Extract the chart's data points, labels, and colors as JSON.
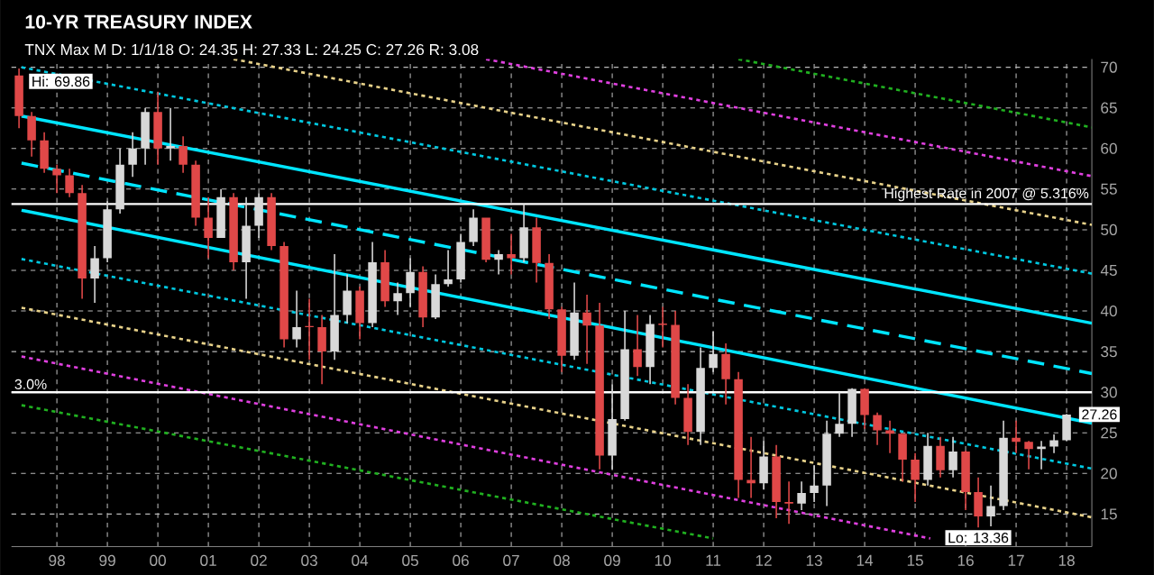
{
  "chart_data": {
    "type": "candlestick",
    "title": "10-YR TREASURY INDEX",
    "subtitle": "TNX Max M   D: 1/1/18   O: 24.35   H: 27.33   L: 24.25   C: 27.26   R: 3.08",
    "x": [
      1997.25,
      1997.5,
      1997.75,
      1998.0,
      1998.25,
      1998.5,
      1998.75,
      1999.0,
      1999.25,
      1999.5,
      1999.75,
      2000.0,
      2000.25,
      2000.5,
      2000.75,
      2001.0,
      2001.25,
      2001.5,
      2001.75,
      2002.0,
      2002.25,
      2002.5,
      2002.75,
      2003.0,
      2003.25,
      2003.5,
      2003.75,
      2004.0,
      2004.25,
      2004.5,
      2004.75,
      2005.0,
      2005.25,
      2005.5,
      2005.75,
      2006.0,
      2006.25,
      2006.5,
      2006.75,
      2007.0,
      2007.25,
      2007.5,
      2007.75,
      2008.0,
      2008.25,
      2008.5,
      2008.75,
      2009.0,
      2009.25,
      2009.5,
      2009.75,
      2010.0,
      2010.25,
      2010.5,
      2010.75,
      2011.0,
      2011.25,
      2011.5,
      2011.75,
      2012.0,
      2012.25,
      2012.5,
      2012.75,
      2013.0,
      2013.25,
      2013.5,
      2013.75,
      2014.0,
      2014.25,
      2014.5,
      2014.75,
      2015.0,
      2015.25,
      2015.5,
      2015.75,
      2016.0,
      2016.25,
      2016.5,
      2016.75,
      2017.0,
      2017.25,
      2017.5,
      2017.75,
      2018.0
    ],
    "ohlc": [
      [
        69.0,
        69.86,
        62.5,
        64.0
      ],
      [
        64.0,
        64.5,
        59.0,
        61.0
      ],
      [
        61.0,
        62.0,
        57.0,
        57.5
      ],
      [
        57.5,
        58.0,
        54.5,
        56.7
      ],
      [
        56.7,
        57.5,
        54.0,
        54.5
      ],
      [
        54.5,
        55.5,
        41.5,
        44.0
      ],
      [
        44.0,
        48.0,
        41.0,
        46.5
      ],
      [
        46.5,
        53.5,
        46.0,
        52.5
      ],
      [
        52.5,
        60.0,
        52.0,
        58.0
      ],
      [
        58.0,
        62.0,
        56.5,
        60.0
      ],
      [
        60.0,
        65.0,
        58.0,
        64.5
      ],
      [
        64.5,
        67.0,
        58.0,
        60.0
      ],
      [
        60.0,
        65.0,
        58.5,
        60.3
      ],
      [
        60.3,
        61.5,
        57.0,
        58.0
      ],
      [
        58.0,
        58.5,
        50.5,
        51.5
      ],
      [
        51.5,
        54.0,
        46.5,
        49.0
      ],
      [
        49.0,
        55.0,
        49.0,
        54.0
      ],
      [
        54.0,
        54.5,
        45.0,
        46.0
      ],
      [
        46.0,
        54.0,
        41.5,
        50.5
      ],
      [
        50.5,
        54.5,
        49.0,
        54.0
      ],
      [
        54.0,
        54.5,
        47.5,
        48.0
      ],
      [
        48.0,
        48.5,
        35.5,
        36.5
      ],
      [
        36.5,
        42.5,
        35.5,
        38.0
      ],
      [
        38.0,
        41.5,
        34.0,
        38.0
      ],
      [
        38.0,
        39.5,
        31.0,
        35.0
      ],
      [
        35.0,
        47.0,
        34.0,
        39.5
      ],
      [
        39.5,
        44.5,
        38.5,
        42.5
      ],
      [
        42.5,
        43.0,
        36.5,
        38.5
      ],
      [
        38.5,
        48.5,
        38.0,
        46.0
      ],
      [
        46.0,
        47.5,
        40.5,
        41.2
      ],
      [
        41.2,
        43.5,
        39.5,
        42.2
      ],
      [
        42.2,
        46.5,
        40.5,
        44.8
      ],
      [
        44.8,
        45.5,
        38.0,
        39.2
      ],
      [
        39.2,
        44.5,
        39.0,
        43.3
      ],
      [
        43.3,
        47.5,
        43.0,
        43.9
      ],
      [
        43.9,
        49.5,
        43.5,
        48.5
      ],
      [
        48.5,
        52.5,
        48.0,
        51.5
      ],
      [
        51.5,
        51.5,
        46.0,
        46.3
      ],
      [
        46.3,
        47.5,
        44.5,
        47.0
      ],
      [
        47.0,
        49.5,
        44.5,
        46.5
      ],
      [
        46.5,
        53.16,
        46.0,
        50.3
      ],
      [
        50.3,
        51.5,
        43.5,
        45.9
      ],
      [
        45.9,
        47.0,
        39.0,
        40.2
      ],
      [
        40.2,
        40.5,
        32.5,
        34.5
      ],
      [
        34.5,
        43.5,
        34.0,
        39.8
      ],
      [
        39.8,
        42.0,
        33.5,
        38.2
      ],
      [
        38.2,
        41.0,
        20.5,
        22.2
      ],
      [
        22.2,
        31.0,
        20.5,
        26.7
      ],
      [
        26.7,
        40.0,
        26.5,
        35.3
      ],
      [
        35.3,
        39.5,
        32.0,
        33.1
      ],
      [
        33.1,
        39.5,
        31.0,
        38.4
      ],
      [
        38.4,
        40.5,
        35.5,
        38.3
      ],
      [
        38.3,
        40.0,
        28.5,
        29.3
      ],
      [
        29.3,
        31.0,
        23.5,
        25.1
      ],
      [
        25.1,
        35.5,
        23.5,
        33.0
      ],
      [
        33.0,
        37.5,
        32.5,
        34.7
      ],
      [
        34.7,
        36.0,
        28.5,
        31.6
      ],
      [
        31.6,
        32.5,
        17.0,
        19.2
      ],
      [
        19.2,
        24.5,
        17.0,
        18.8
      ],
      [
        18.8,
        24.0,
        18.0,
        22.1
      ],
      [
        22.1,
        23.5,
        14.5,
        16.5
      ],
      [
        16.5,
        19.0,
        13.8,
        16.3
      ],
      [
        16.3,
        19.0,
        15.5,
        17.6
      ],
      [
        17.6,
        21.0,
        16.5,
        18.5
      ],
      [
        18.5,
        26.5,
        16.0,
        24.9
      ],
      [
        24.9,
        30.0,
        24.5,
        26.1
      ],
      [
        26.1,
        30.5,
        24.5,
        30.4
      ],
      [
        30.4,
        30.5,
        25.5,
        27.2
      ],
      [
        27.2,
        27.5,
        23.5,
        25.3
      ],
      [
        25.3,
        26.5,
        22.5,
        24.9
      ],
      [
        24.9,
        24.9,
        19.0,
        21.7
      ],
      [
        21.7,
        22.5,
        16.5,
        19.2
      ],
      [
        19.2,
        25.0,
        18.5,
        23.4
      ],
      [
        23.4,
        24.5,
        19.5,
        20.4
      ],
      [
        20.4,
        24.5,
        19.5,
        22.7
      ],
      [
        22.7,
        22.8,
        15.5,
        17.7
      ],
      [
        17.7,
        19.5,
        13.36,
        14.7
      ],
      [
        14.7,
        18.5,
        13.5,
        16.0
      ],
      [
        16.0,
        26.5,
        15.5,
        24.4
      ],
      [
        24.4,
        26.5,
        22.5,
        23.9
      ],
      [
        23.9,
        24.0,
        20.5,
        23.0
      ],
      [
        23.0,
        24.0,
        20.5,
        23.3
      ],
      [
        23.3,
        24.8,
        22.5,
        24.1
      ],
      [
        24.1,
        27.33,
        24.0,
        27.26
      ]
    ],
    "colors": [
      "#e04848",
      "#e04848",
      "#e04848",
      "#e04848",
      "#e04848",
      "#e04848",
      "#d8d8d8",
      "#d8d8d8",
      "#d8d8d8",
      "#d8d8d8",
      "#d8d8d8",
      "#e04848",
      "#d8d8d8",
      "#e04848",
      "#e04848",
      "#e04848",
      "#d8d8d8",
      "#e04848",
      "#d8d8d8",
      "#d8d8d8",
      "#e04848",
      "#e04848",
      "#d8d8d8",
      "#e04848",
      "#e04848",
      "#d8d8d8",
      "#d8d8d8",
      "#e04848",
      "#d8d8d8",
      "#e04848",
      "#d8d8d8",
      "#d8d8d8",
      "#e04848",
      "#d8d8d8",
      "#d8d8d8",
      "#d8d8d8",
      "#d8d8d8",
      "#e04848",
      "#d8d8d8",
      "#e04848",
      "#d8d8d8",
      "#e04848",
      "#e04848",
      "#e04848",
      "#d8d8d8",
      "#e04848",
      "#e04848",
      "#d8d8d8",
      "#d8d8d8",
      "#e04848",
      "#d8d8d8",
      "#e04848",
      "#e04848",
      "#e04848",
      "#d8d8d8",
      "#d8d8d8",
      "#e04848",
      "#e04848",
      "#e04848",
      "#d8d8d8",
      "#e04848",
      "#e04848",
      "#d8d8d8",
      "#d8d8d8",
      "#d8d8d8",
      "#d8d8d8",
      "#d8d8d8",
      "#e04848",
      "#e04848",
      "#e04848",
      "#e04848",
      "#e04848",
      "#d8d8d8",
      "#e04848",
      "#d8d8d8",
      "#e04848",
      "#e04848",
      "#d8d8d8",
      "#d8d8d8",
      "#e04848",
      "#e04848",
      "#d8d8d8",
      "#d8d8d8",
      "#d8d8d8"
    ],
    "series": [
      {
        "type": "line",
        "color": "#00e5ff",
        "line_style": "solid",
        "x": [
          1997.3,
          2018.5
        ],
        "values": [
          64.0,
          38.5
        ]
      },
      {
        "type": "line",
        "color": "#00e5ff",
        "line_style": "dashed",
        "x": [
          1997.3,
          2018.5
        ],
        "values": [
          58.2,
          32.3
        ]
      },
      {
        "type": "line",
        "color": "#00e5ff",
        "line_style": "solid",
        "x": [
          1997.3,
          2018.5
        ],
        "values": [
          52.4,
          26.2
        ]
      },
      {
        "type": "line",
        "color": "#00c8e0",
        "line_style": "dotted",
        "x": [
          1997.3,
          2018.5
        ],
        "values": [
          70.0,
          44.6
        ]
      },
      {
        "type": "line",
        "color": "#00c8e0",
        "line_style": "dotted",
        "x": [
          1997.3,
          2018.5
        ],
        "values": [
          46.4,
          20.6
        ]
      },
      {
        "type": "line",
        "color": "#e8d28a",
        "line_style": "dotted",
        "x": [
          2001.5,
          2018.5
        ],
        "values": [
          71.0,
          50.6
        ]
      },
      {
        "type": "line",
        "color": "#e8d28a",
        "line_style": "dotted",
        "x": [
          1997.3,
          2018.5
        ],
        "values": [
          40.4,
          14.6
        ]
      },
      {
        "type": "line",
        "color": "#e040e0",
        "line_style": "dotted",
        "x": [
          2006.5,
          2018.5
        ],
        "values": [
          71.0,
          56.6
        ]
      },
      {
        "type": "line",
        "color": "#e040e0",
        "line_style": "dotted",
        "x": [
          1997.3,
          2015.3
        ],
        "values": [
          34.4,
          12.0
        ]
      },
      {
        "type": "line",
        "color": "#20b020",
        "line_style": "dotted",
        "x": [
          2011.5,
          2018.5
        ],
        "values": [
          71.0,
          62.6
        ]
      },
      {
        "type": "line",
        "color": "#20b020",
        "line_style": "dotted",
        "x": [
          1997.3,
          2011.0
        ],
        "values": [
          28.4,
          12.0
        ]
      }
    ],
    "ref_lines": [
      {
        "axis": "y",
        "value": 30,
        "color": "#ffffff"
      },
      {
        "axis": "y",
        "value": 53.16,
        "label": "Highest Rate in 2007 @ 5.316%",
        "color": "#ffffff"
      }
    ],
    "annotations": [
      {
        "text": "Hi: 69.86",
        "x": 1997.25,
        "y": 69.86
      },
      {
        "text": "Lo: 13.36",
        "x": 2016.25,
        "y": 13.36
      },
      {
        "text": "27.26",
        "x": 2018.0,
        "y": 27.26
      },
      "3.0%"
    ],
    "xlim": [
      1997.1,
      2018.5
    ],
    "ylim": [
      11,
      71
    ],
    "xticks": [
      {
        "value": 1998,
        "label": "98"
      },
      {
        "value": 1999,
        "label": "99"
      },
      {
        "value": 2000,
        "label": "00"
      },
      {
        "value": 2001,
        "label": "01"
      },
      {
        "value": 2002,
        "label": "02"
      },
      {
        "value": 2003,
        "label": "03"
      },
      {
        "value": 2004,
        "label": "04"
      },
      {
        "value": 2005,
        "label": "05"
      },
      {
        "value": 2006,
        "label": "06"
      },
      {
        "value": 2007,
        "label": "07"
      },
      {
        "value": 2008,
        "label": "08"
      },
      {
        "value": 2009,
        "label": "09"
      },
      {
        "value": 2010,
        "label": "10"
      },
      {
        "value": 2011,
        "label": "11"
      },
      {
        "value": 2012,
        "label": "12"
      },
      {
        "value": 2013,
        "label": "13"
      },
      {
        "value": 2014,
        "label": "14"
      },
      {
        "value": 2015,
        "label": "15"
      },
      {
        "value": 2016,
        "label": "16"
      },
      {
        "value": 2017,
        "label": "17"
      },
      {
        "value": 2018,
        "label": "18"
      }
    ],
    "yticks": [
      15,
      20,
      25,
      30,
      35,
      40,
      45,
      50,
      55,
      60,
      65,
      70
    ],
    "grid": true
  }
}
